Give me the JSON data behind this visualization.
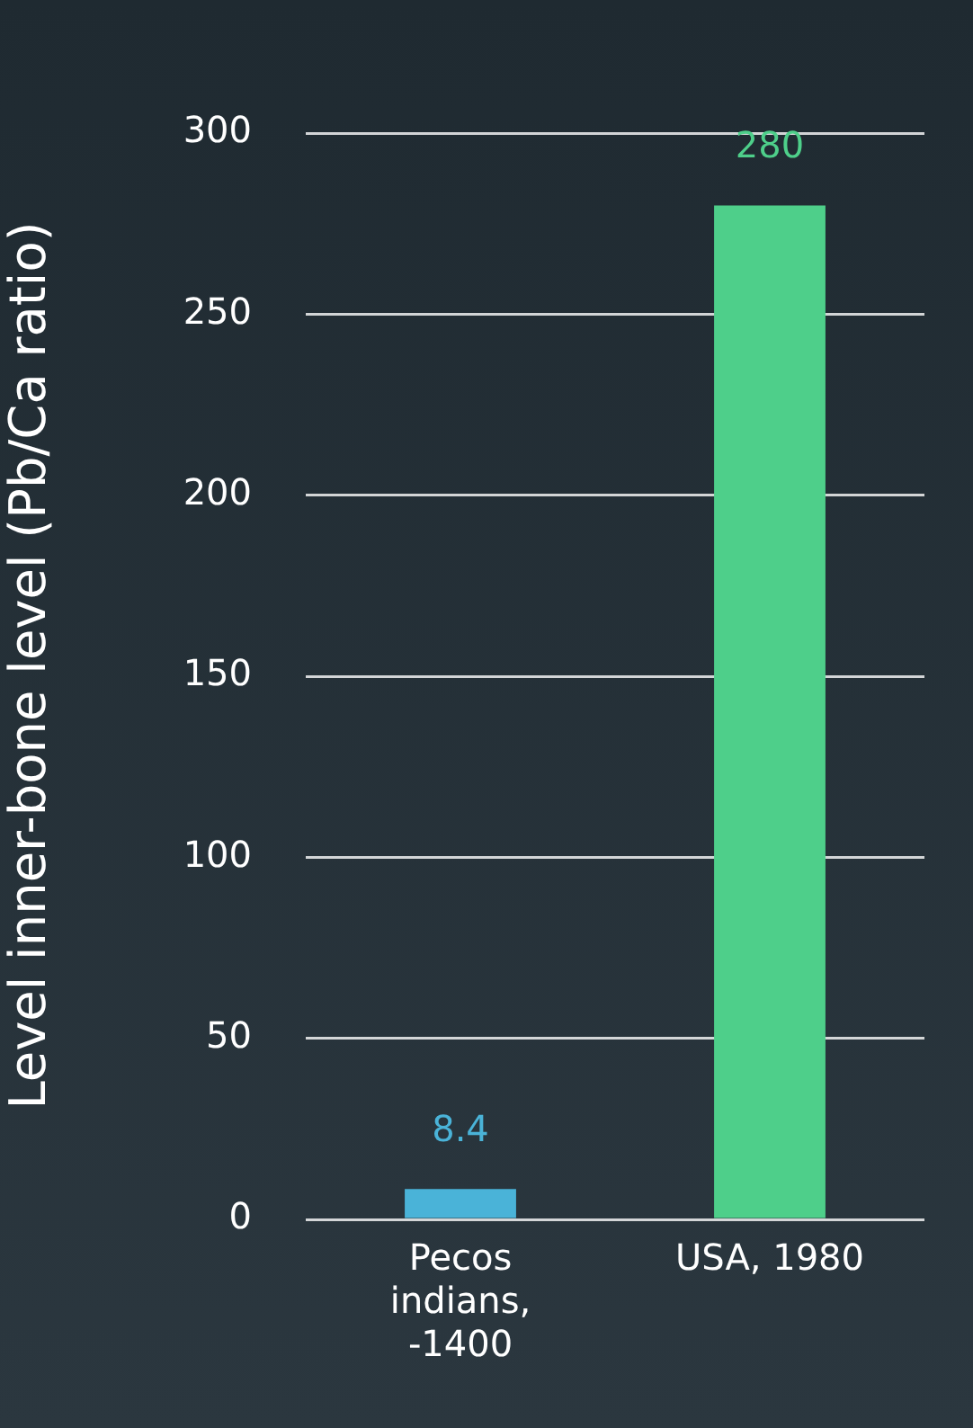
{
  "chart_data": {
    "type": "bar",
    "ylabel": "Level inner-bone level (Pb/Ca ratio)",
    "categories": [
      "Pecos indians, -1400",
      "USA, 1980"
    ],
    "values": [
      8.4,
      280
    ],
    "colors": [
      "#4ab3d8",
      "#4ecf8a"
    ],
    "ylim": [
      0,
      300
    ],
    "yticks": [
      0,
      50,
      100,
      150,
      200,
      250,
      300
    ],
    "grid": "y",
    "data_labels": true,
    "legend": false
  }
}
